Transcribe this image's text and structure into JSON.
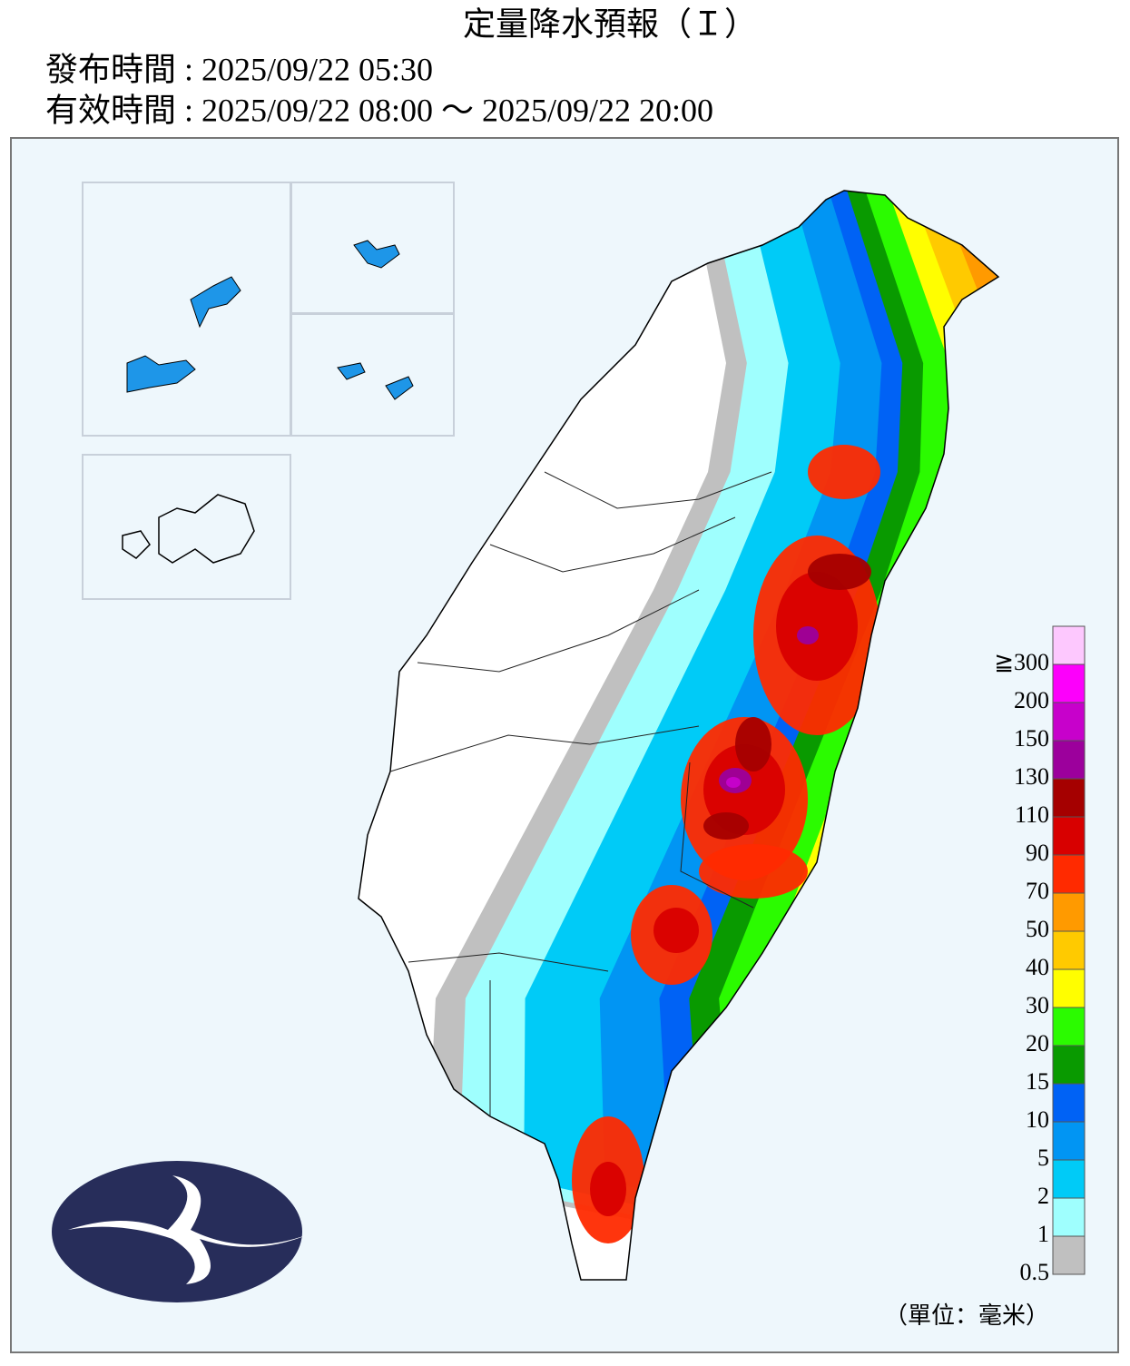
{
  "header": {
    "title": "定量降水預報（Ｉ）",
    "issued": "發布時間 : 2025/09/22 05:30",
    "valid": "有效時間 : 2025/09/22 08:00 ～ 2025/09/22 20:00"
  },
  "legend": {
    "labels": [
      "0.5",
      "1",
      "2",
      "5",
      "10",
      "15",
      "20",
      "30",
      "40",
      "50",
      "70",
      "90",
      "110",
      "130",
      "150",
      "200",
      "≧300"
    ],
    "colors": [
      "#c0c0c0",
      "#9ffffe",
      "#00cbf7",
      "#0195f3",
      "#0062f5",
      "#099a00",
      "#2bfb00",
      "#fffe00",
      "#ffca00",
      "#ff9a00",
      "#ff2a00",
      "#d80000",
      "#a50000",
      "#9c009c",
      "#c701cb",
      "#fc00fb",
      "#fdc8fe"
    ],
    "unit": "（單位：毫米）"
  }
}
